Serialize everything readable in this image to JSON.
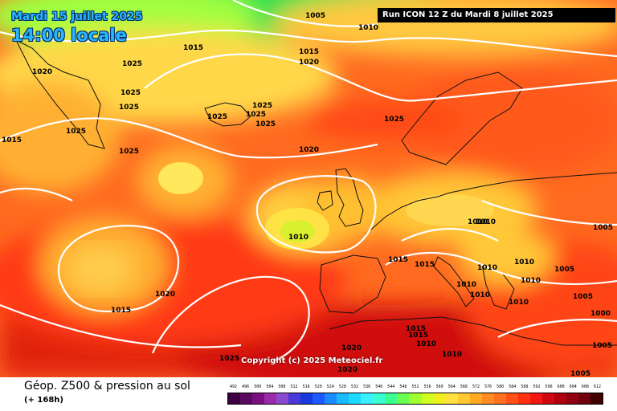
{
  "header": {
    "date": "Mardi 15 juillet 2025",
    "time": "14:00 locale",
    "run": "Run ICON 12 Z du Mardi 8 juillet 2025"
  },
  "copyright": "Copyright (c) 2025 Meteociel.fr",
  "footer": {
    "title": "Géop. Z500 & pression au sol",
    "lead": "(+ 168h)"
  },
  "colors": {
    "sea_level_isobar": "#ffffff",
    "coastline": "#111111"
  },
  "scale": {
    "ticks": [
      "492",
      "496",
      "500",
      "504",
      "508",
      "512",
      "516",
      "520",
      "524",
      "528",
      "532",
      "536",
      "540",
      "544",
      "548",
      "552",
      "556",
      "560",
      "564",
      "568",
      "572",
      "576",
      "580",
      "584",
      "588",
      "592",
      "596",
      "600",
      "604",
      "608",
      "612"
    ],
    "colors": [
      "#3b0040",
      "#5a0a5f",
      "#7a1080",
      "#9a2aa8",
      "#8a4ad0",
      "#4a3ad8",
      "#1a3ae0",
      "#1a5aff",
      "#1a8aff",
      "#1abaff",
      "#1adaff",
      "#3af0ff",
      "#3affd0",
      "#3aff90",
      "#6aff50",
      "#a0ff30",
      "#d0ff20",
      "#f0f020",
      "#ffe040",
      "#ffc830",
      "#ffaa20",
      "#ff8c20",
      "#ff7020",
      "#ff5018",
      "#ff3010",
      "#f01810",
      "#d00810",
      "#b00010",
      "#900010",
      "#700010",
      "#400000"
    ]
  },
  "isobar_labels": [
    {
      "text": "1005"
    },
    {
      "text": "1010"
    },
    {
      "text": "1015"
    },
    {
      "text": "1020"
    },
    {
      "text": "1020"
    },
    {
      "text": "1025"
    },
    {
      "text": "1025"
    },
    {
      "text": "1025"
    },
    {
      "text": "1015"
    },
    {
      "text": "1025"
    },
    {
      "text": "1025"
    },
    {
      "text": "1025"
    },
    {
      "text": "1025"
    },
    {
      "text": "1025"
    },
    {
      "text": "1025"
    },
    {
      "text": "1020"
    },
    {
      "text": "1025"
    },
    {
      "text": "1010"
    },
    {
      "text": "1015"
    },
    {
      "text": "1020"
    },
    {
      "text": "1015"
    },
    {
      "text": "1015"
    },
    {
      "text": "1015"
    },
    {
      "text": "1010"
    },
    {
      "text": "1010"
    },
    {
      "text": "1010"
    },
    {
      "text": "1010"
    },
    {
      "text": "1010"
    },
    {
      "text": "1005"
    },
    {
      "text": "1005"
    },
    {
      "text": "1000"
    },
    {
      "text": "1005"
    },
    {
      "text": "1005"
    },
    {
      "text": "1005"
    },
    {
      "text": "1020"
    },
    {
      "text": "1015"
    },
    {
      "text": "1010"
    },
    {
      "text": "1010"
    },
    {
      "text": "1025"
    },
    {
      "text": "1020"
    },
    {
      "text": "1010"
    },
    {
      "text": "1015"
    },
    {
      "text": "1010"
    },
    {
      "text": "1010"
    }
  ]
}
